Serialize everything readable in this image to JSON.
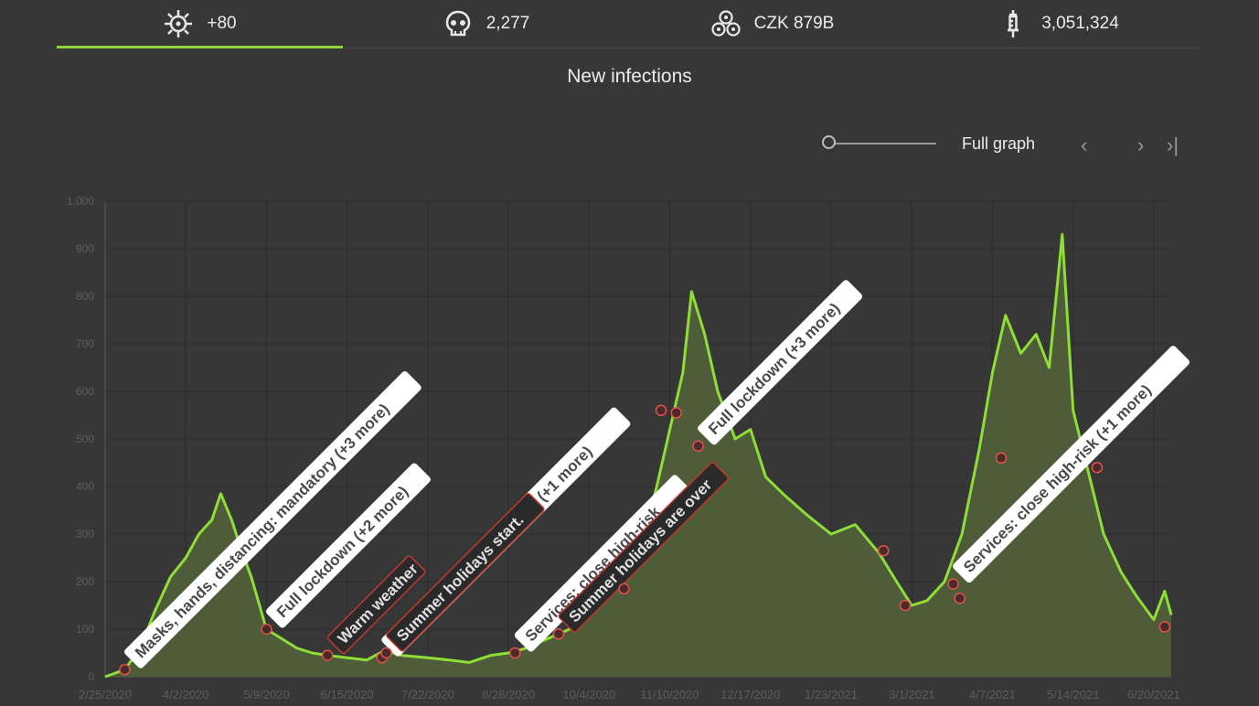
{
  "stats": [
    {
      "icon": "virus-icon",
      "value": "+80",
      "active": true
    },
    {
      "icon": "skull-icon",
      "value": "2,277",
      "active": false
    },
    {
      "icon": "coins-icon",
      "value": "CZK 879B",
      "active": false
    },
    {
      "icon": "syringe-icon",
      "value": "3,051,324",
      "active": false
    }
  ],
  "title": "New infections",
  "controls": {
    "full_graph_label": "Full graph",
    "prev_label": "‹",
    "next_label": "›",
    "last_label": "›|"
  },
  "colors": {
    "line": "#8fdd37",
    "area": "#4f5e3a",
    "accent": "#8fd43a",
    "marker_fill": "#4a2a2a",
    "marker_stroke": "#e0524a"
  },
  "chart_data": {
    "type": "area",
    "title": "New infections",
    "xlabel": "",
    "ylabel": "",
    "ylim": [
      0,
      1000
    ],
    "yticks": [
      "0",
      "100",
      "200",
      "300",
      "400",
      "500",
      "600",
      "700",
      "800",
      "900",
      "1,000"
    ],
    "x_tick_labels": [
      "2/25/2020",
      "4/2/2020",
      "5/9/2020",
      "6/15/2020",
      "7/22/2020",
      "8/28/2020",
      "10/4/2020",
      "11/10/2020",
      "12/17/2020",
      "1/23/2021",
      "3/1/2021",
      "4/7/2021",
      "5/14/2021",
      "6/20/2021"
    ],
    "x_start": "2/25/2020",
    "x_end": "6/28/2021",
    "grid": true,
    "series": [
      {
        "points": [
          [
            "2/25/2020",
            0
          ],
          [
            "3/5/2020",
            15
          ],
          [
            "3/12/2020",
            60
          ],
          [
            "3/19/2020",
            140
          ],
          [
            "3/26/2020",
            210
          ],
          [
            "4/2/2020",
            250
          ],
          [
            "4/8/2020",
            300
          ],
          [
            "4/14/2020",
            330
          ],
          [
            "4/18/2020",
            385
          ],
          [
            "4/23/2020",
            330
          ],
          [
            "4/28/2020",
            260
          ],
          [
            "5/2/2020",
            210
          ],
          [
            "5/9/2020",
            100
          ],
          [
            "5/16/2020",
            80
          ],
          [
            "5/23/2020",
            60
          ],
          [
            "5/30/2020",
            50
          ],
          [
            "6/6/2020",
            45
          ],
          [
            "6/15/2020",
            40
          ],
          [
            "6/24/2020",
            35
          ],
          [
            "7/2/2020",
            55
          ],
          [
            "7/10/2020",
            45
          ],
          [
            "7/22/2020",
            40
          ],
          [
            "8/1/2020",
            35
          ],
          [
            "8/10/2020",
            30
          ],
          [
            "8/20/2020",
            45
          ],
          [
            "8/28/2020",
            50
          ],
          [
            "9/5/2020",
            60
          ],
          [
            "9/15/2020",
            80
          ],
          [
            "9/25/2020",
            100
          ],
          [
            "10/4/2020",
            140
          ],
          [
            "10/12/2020",
            170
          ],
          [
            "10/20/2020",
            200
          ],
          [
            "10/28/2020",
            280
          ],
          [
            "11/4/2020",
            400
          ],
          [
            "11/10/2020",
            520
          ],
          [
            "11/16/2020",
            640
          ],
          [
            "11/20/2020",
            810
          ],
          [
            "11/26/2020",
            720
          ],
          [
            "12/2/2020",
            600
          ],
          [
            "12/10/2020",
            500
          ],
          [
            "12/17/2020",
            520
          ],
          [
            "12/24/2020",
            420
          ],
          [
            "1/2/2021",
            380
          ],
          [
            "1/12/2021",
            340
          ],
          [
            "1/23/2021",
            300
          ],
          [
            "2/3/2021",
            320
          ],
          [
            "2/14/2021",
            260
          ],
          [
            "2/22/2021",
            200
          ],
          [
            "3/1/2021",
            150
          ],
          [
            "3/8/2021",
            160
          ],
          [
            "3/16/2021",
            200
          ],
          [
            "3/24/2021",
            300
          ],
          [
            "4/1/2021",
            480
          ],
          [
            "4/7/2021",
            640
          ],
          [
            "4/13/2021",
            760
          ],
          [
            "4/20/2021",
            680
          ],
          [
            "4/27/2021",
            720
          ],
          [
            "5/3/2021",
            650
          ],
          [
            "5/9/2021",
            930
          ],
          [
            "5/14/2021",
            560
          ],
          [
            "5/21/2021",
            430
          ],
          [
            "5/28/2021",
            300
          ],
          [
            "6/5/2021",
            220
          ],
          [
            "6/12/2021",
            170
          ],
          [
            "6/20/2021",
            120
          ],
          [
            "6/25/2021",
            180
          ],
          [
            "6/28/2021",
            130
          ]
        ]
      }
    ],
    "events": [
      {
        "date": "3/5/2020",
        "value": 15,
        "label": "Masks, hands, distancing: mandatory (+3 more)",
        "style": "light"
      },
      {
        "date": "5/9/2020",
        "value": 100,
        "label": "Full lockdown (+2 more)",
        "style": "light"
      },
      {
        "date": "6/6/2020",
        "value": 45,
        "label": "Warm weather",
        "style": "dark"
      },
      {
        "date": "7/1/2020",
        "value": 40,
        "label": "Schools: close universities (+1 more)",
        "style": "light"
      },
      {
        "date": "7/3/2020",
        "value": 50,
        "label": "Summer holidays start.",
        "style": "dark"
      },
      {
        "date": "8/31/2020",
        "value": 50,
        "label": "Services: close high-risk",
        "style": "light"
      },
      {
        "date": "9/20/2020",
        "value": 90,
        "label": "Summer holidays are over",
        "style": "dark"
      },
      {
        "date": "10/20/2020",
        "value": 185,
        "label": "",
        "style": "none"
      },
      {
        "date": "11/6/2020",
        "value": 560,
        "label": "",
        "style": "none"
      },
      {
        "date": "11/13/2020",
        "value": 555,
        "label": "",
        "style": "none"
      },
      {
        "date": "11/23/2020",
        "value": 485,
        "label": "Full lockdown (+3 more)",
        "style": "light"
      },
      {
        "date": "2/16/2021",
        "value": 265,
        "label": "",
        "style": "none"
      },
      {
        "date": "2/26/2021",
        "value": 150,
        "label": "",
        "style": "none"
      },
      {
        "date": "3/20/2021",
        "value": 195,
        "label": "Services: close high-risk (+1 more)",
        "style": "light"
      },
      {
        "date": "3/23/2021",
        "value": 165,
        "label": "",
        "style": "none"
      },
      {
        "date": "4/11/2021",
        "value": 460,
        "label": "",
        "style": "none"
      },
      {
        "date": "5/25/2021",
        "value": 440,
        "label": "",
        "style": "none"
      },
      {
        "date": "6/25/2021",
        "value": 105,
        "label": "",
        "style": "none"
      }
    ]
  }
}
